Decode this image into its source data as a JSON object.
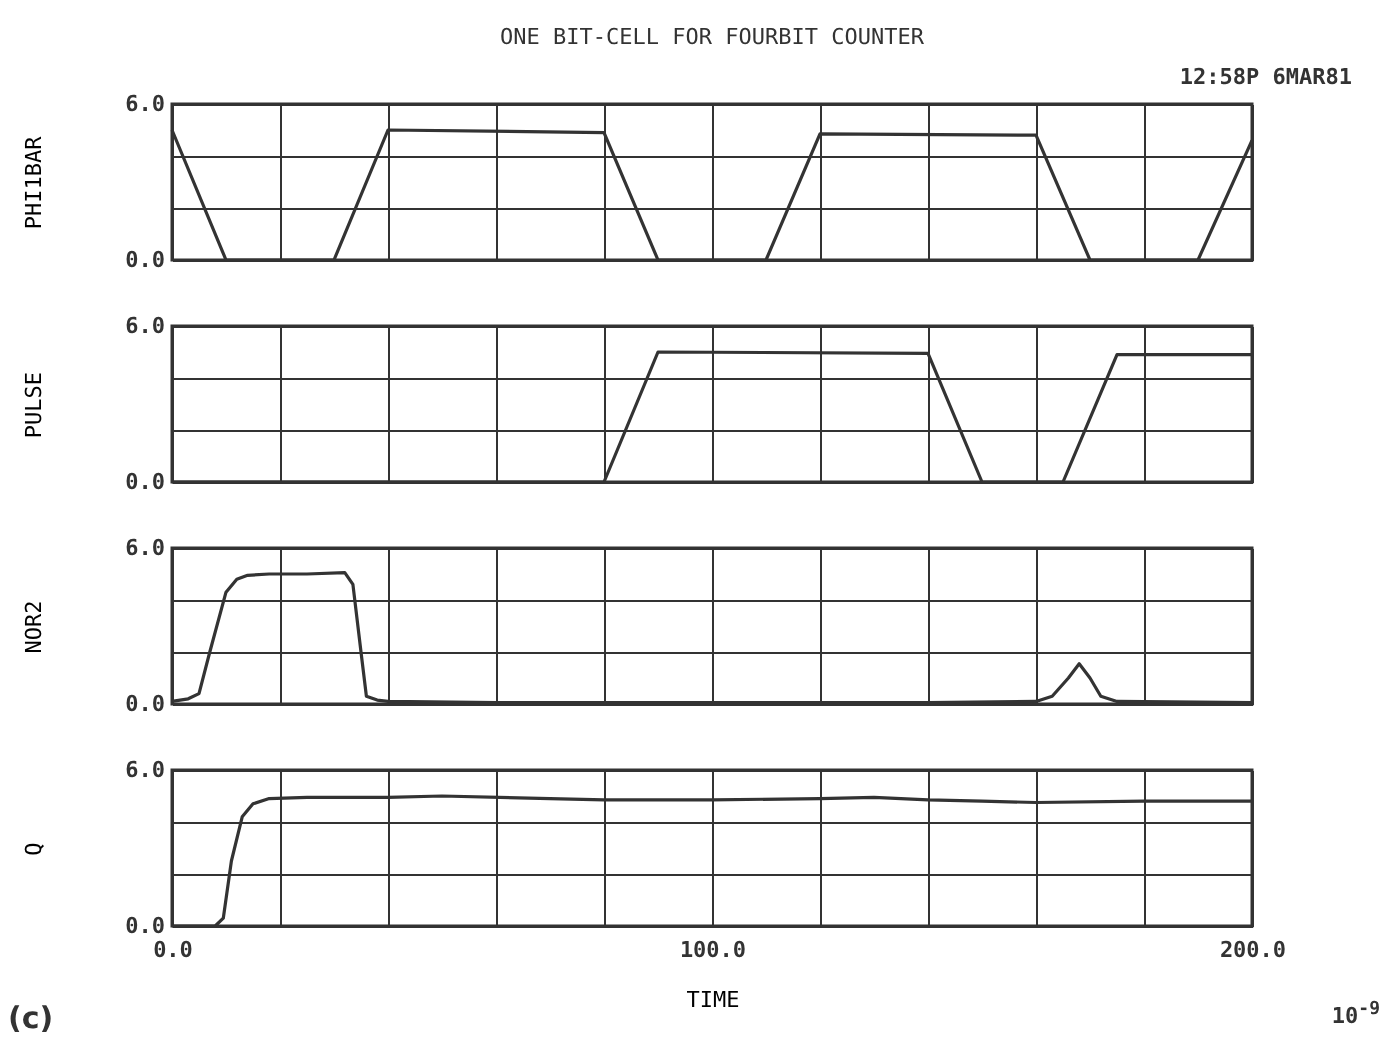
{
  "chart_data": [
    {
      "type": "line",
      "title": "ONE BIT-CELL FOR FOURBIT COUNTER",
      "ylabel": "PHI1BAR",
      "annotations": [
        "12:58P 6MAR81"
      ],
      "x": [
        0,
        10,
        30,
        40,
        80,
        90,
        110,
        120,
        160,
        170,
        190,
        200
      ],
      "series": [
        {
          "color": "#333333",
          "values": [
            5.0,
            0,
            0,
            5.0,
            4.9,
            0,
            0,
            4.85,
            4.8,
            0,
            0,
            4.6
          ]
        }
      ],
      "xlim": [
        0,
        200
      ],
      "xticks": [
        {
          "value": 0,
          "label": null
        },
        {
          "value": 20,
          "label": null
        },
        {
          "value": 40,
          "label": null
        },
        {
          "value": 60,
          "label": null
        },
        {
          "value": 80,
          "label": null
        },
        {
          "value": 100,
          "label": null
        },
        {
          "value": 120,
          "label": null
        },
        {
          "value": 140,
          "label": null
        },
        {
          "value": 160,
          "label": null
        },
        {
          "value": 180,
          "label": null
        },
        {
          "value": 200,
          "label": null
        }
      ],
      "ylim": [
        0,
        6
      ],
      "yticks": [
        {
          "value": 0,
          "label": "0.0"
        },
        {
          "value": 2,
          "label": null
        },
        {
          "value": 4,
          "label": null
        },
        {
          "value": 6,
          "label": "6.0"
        }
      ],
      "grid": true,
      "tick_labels": "y"
    },
    {
      "type": "line",
      "ylabel": "PULSE",
      "x": [
        0,
        80,
        90,
        140,
        150,
        165,
        175,
        200
      ],
      "series": [
        {
          "color": "#333333",
          "values": [
            0,
            0,
            5.0,
            4.95,
            0,
            0,
            4.9,
            4.9
          ]
        }
      ],
      "xlim": [
        0,
        200
      ],
      "xticks": [
        {
          "value": 0,
          "label": null
        },
        {
          "value": 20,
          "label": null
        },
        {
          "value": 40,
          "label": null
        },
        {
          "value": 60,
          "label": null
        },
        {
          "value": 80,
          "label": null
        },
        {
          "value": 100,
          "label": null
        },
        {
          "value": 120,
          "label": null
        },
        {
          "value": 140,
          "label": null
        },
        {
          "value": 160,
          "label": null
        },
        {
          "value": 180,
          "label": null
        },
        {
          "value": 200,
          "label": null
        }
      ],
      "ylim": [
        0,
        6
      ],
      "yticks": [
        {
          "value": 0,
          "label": "0.0"
        },
        {
          "value": 2,
          "label": null
        },
        {
          "value": 4,
          "label": null
        },
        {
          "value": 6,
          "label": "6.0"
        }
      ],
      "grid": true,
      "tick_labels": "y"
    },
    {
      "type": "line",
      "ylabel": "NOR2",
      "x": [
        0,
        3,
        5,
        7,
        10,
        12,
        14,
        18,
        25,
        32,
        33.5,
        35,
        36,
        38,
        40,
        60,
        80,
        100,
        120,
        140,
        160,
        163,
        166,
        168,
        170,
        172,
        175,
        200
      ],
      "series": [
        {
          "color": "#333333",
          "values": [
            0.1,
            0.2,
            0.4,
            2.0,
            4.3,
            4.8,
            4.95,
            5.0,
            5.0,
            5.05,
            4.6,
            2.0,
            0.3,
            0.15,
            0.1,
            0.05,
            0.05,
            0.05,
            0.05,
            0.05,
            0.1,
            0.3,
            1.0,
            1.55,
            1.0,
            0.3,
            0.1,
            0.05
          ]
        }
      ],
      "xlim": [
        0,
        200
      ],
      "xticks": [
        {
          "value": 0,
          "label": null
        },
        {
          "value": 20,
          "label": null
        },
        {
          "value": 40,
          "label": null
        },
        {
          "value": 60,
          "label": null
        },
        {
          "value": 80,
          "label": null
        },
        {
          "value": 100,
          "label": null
        },
        {
          "value": 120,
          "label": null
        },
        {
          "value": 140,
          "label": null
        },
        {
          "value": 160,
          "label": null
        },
        {
          "value": 180,
          "label": null
        },
        {
          "value": 200,
          "label": null
        }
      ],
      "ylim": [
        0,
        6
      ],
      "yticks": [
        {
          "value": 0,
          "label": "0.0"
        },
        {
          "value": 2,
          "label": null
        },
        {
          "value": 4,
          "label": null
        },
        {
          "value": 6,
          "label": "6.0"
        }
      ],
      "grid": true,
      "tick_labels": "y"
    },
    {
      "type": "line",
      "ylabel": "Q",
      "xlabel": "TIME",
      "annotations": [
        "10$^{-9}$",
        "(c)"
      ],
      "x": [
        0,
        8,
        9.5,
        11,
        13,
        15,
        18,
        25,
        40,
        50,
        70,
        80,
        100,
        120,
        130,
        140,
        150,
        160,
        180,
        200
      ],
      "series": [
        {
          "color": "#333333",
          "values": [
            0,
            0,
            0.3,
            2.5,
            4.2,
            4.7,
            4.9,
            4.95,
            4.95,
            5.0,
            4.9,
            4.85,
            4.85,
            4.9,
            4.95,
            4.85,
            4.8,
            4.75,
            4.8,
            4.8
          ]
        }
      ],
      "xlim": [
        0,
        200
      ],
      "xticks": [
        {
          "value": 0,
          "label": "0.0"
        },
        {
          "value": 20,
          "label": null
        },
        {
          "value": 40,
          "label": null
        },
        {
          "value": 60,
          "label": null
        },
        {
          "value": 80,
          "label": null
        },
        {
          "value": 100,
          "label": "100.0"
        },
        {
          "value": 120,
          "label": null
        },
        {
          "value": 140,
          "label": null
        },
        {
          "value": 160,
          "label": null
        },
        {
          "value": 180,
          "label": null
        },
        {
          "value": 200,
          "label": "200.0"
        }
      ],
      "ylim": [
        0,
        6
      ],
      "yticks": [
        {
          "value": 0,
          "label": "0.0"
        },
        {
          "value": 2,
          "label": null
        },
        {
          "value": 4,
          "label": null
        },
        {
          "value": 6,
          "label": "6.0"
        }
      ],
      "grid": true
    }
  ]
}
